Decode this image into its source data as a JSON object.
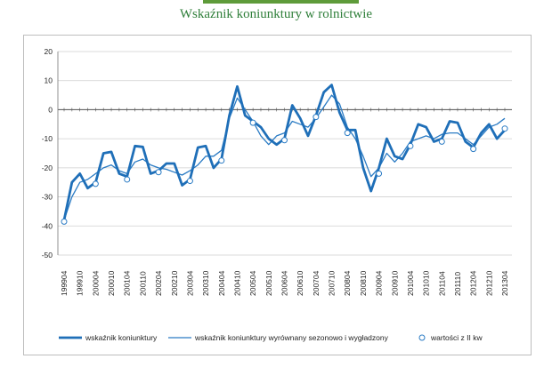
{
  "title": "Wskaźnik koniunktury w rolnictwie",
  "colors": {
    "title": "#2f7f3a",
    "accent": "#5e9b3a",
    "series_main": "#1f6fb8",
    "series_smooth": "#2a7bc4",
    "markers": "#2a7bc4"
  },
  "chart_data": {
    "type": "line",
    "title": "Wskaźnik koniunktury w rolnictwie",
    "xlabel": "",
    "ylabel": "",
    "ylim": [
      -50,
      20
    ],
    "yticks": [
      20,
      10,
      0,
      -10,
      -20,
      -30,
      -40,
      -50
    ],
    "grid": true,
    "legend_position": "bottom",
    "x_tick_labels": [
      "199904",
      "199910",
      "200004",
      "200010",
      "200104",
      "200110",
      "200204",
      "200210",
      "200304",
      "200310",
      "200404",
      "200410",
      "200504",
      "200510",
      "200604",
      "200610",
      "200704",
      "200710",
      "200804",
      "200810",
      "200904",
      "200910",
      "201004",
      "201010",
      "201104",
      "201110",
      "201204",
      "201210",
      "201304"
    ],
    "x": [
      "199904",
      "199907",
      "199910",
      "200001",
      "200004",
      "200007",
      "200010",
      "200101",
      "200104",
      "200107",
      "200110",
      "200201",
      "200204",
      "200207",
      "200210",
      "200301",
      "200304",
      "200307",
      "200310",
      "200401",
      "200404",
      "200407",
      "200410",
      "200501",
      "200504",
      "200507",
      "200510",
      "200601",
      "200604",
      "200607",
      "200610",
      "200701",
      "200704",
      "200707",
      "200710",
      "200801",
      "200804",
      "200807",
      "200810",
      "200901",
      "200904",
      "200907",
      "200910",
      "201001",
      "201004",
      "201007",
      "201010",
      "201101",
      "201104",
      "201107",
      "201110",
      "201201",
      "201204",
      "201207",
      "201210",
      "201301",
      "201304"
    ],
    "series": [
      {
        "name": "wskaźnik koniunktury",
        "values": [
          -38,
          -25,
          -22,
          -27,
          -25,
          -15,
          -14.5,
          -22,
          -23,
          -12.5,
          -12.8,
          -22,
          -21,
          -18.5,
          -18.5,
          -26,
          -24,
          -13,
          -12.5,
          -20,
          -17,
          -2,
          8,
          -2,
          -4,
          -6,
          -10,
          -12,
          -10,
          1.5,
          -3,
          -9,
          -2,
          6,
          8.5,
          -1,
          -7,
          -7,
          -20,
          -28,
          -20,
          -10,
          -16,
          -17,
          -12,
          -5,
          -6,
          -11,
          -10,
          -4,
          -4.5,
          -11,
          -13,
          -8,
          -5,
          -10,
          -7
        ]
      },
      {
        "name": "wskaźnik koniunktury wyrównany sezonowo i wygładzony",
        "values": [
          -38,
          -30,
          -25,
          -24,
          -22,
          -20,
          -19,
          -21,
          -22,
          -18,
          -17,
          -19,
          -20,
          -20.5,
          -21.5,
          -22.5,
          -21,
          -19,
          -16,
          -16,
          -14,
          -3,
          4,
          0,
          -4,
          -9,
          -12,
          -9,
          -8,
          -4,
          -5,
          -6,
          -3,
          1,
          5,
          2,
          -6,
          -10,
          -16,
          -23,
          -20,
          -15,
          -18,
          -15,
          -11,
          -10,
          -9,
          -10,
          -8.5,
          -8,
          -8,
          -10,
          -12,
          -9,
          -6,
          -5,
          -3
        ]
      }
    ],
    "markers": {
      "name": "wartości z II kw",
      "x": [
        "199904",
        "200004",
        "200104",
        "200204",
        "200304",
        "200404",
        "200504",
        "200604",
        "200704",
        "200804",
        "200904",
        "201004",
        "201104",
        "201204",
        "201304"
      ],
      "values": [
        -38.5,
        -25.5,
        -24,
        -21.5,
        -24.5,
        -17.5,
        -4.5,
        -10.5,
        -2.5,
        -8,
        -22,
        -12.5,
        -11,
        -13.5,
        -6.5
      ]
    }
  }
}
